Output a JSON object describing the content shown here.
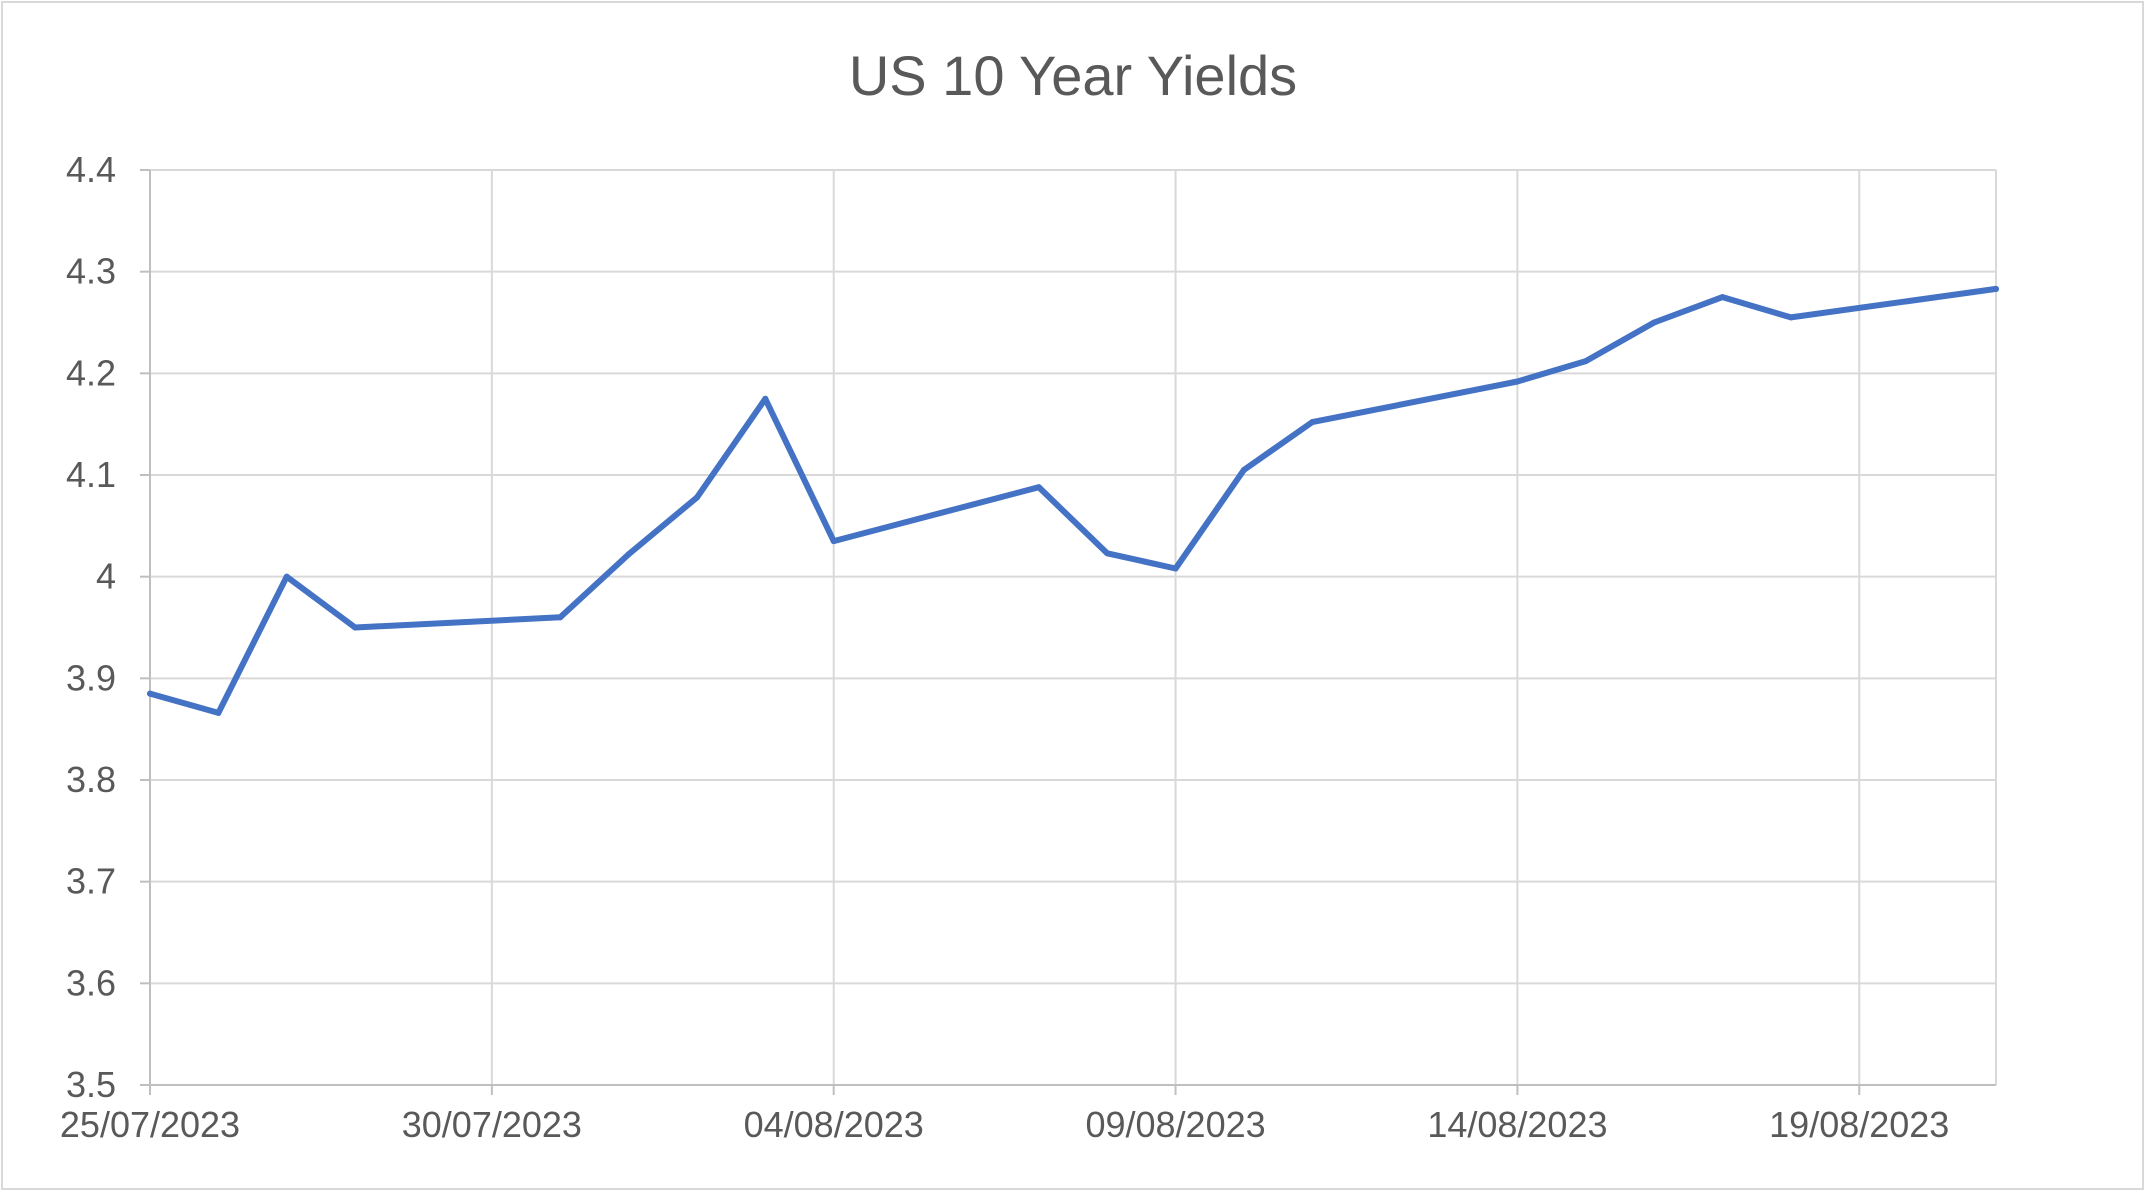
{
  "chart_data": {
    "type": "line",
    "title": "US 10 Year Yields",
    "xlabel": "",
    "ylabel": "",
    "x_axis": "date",
    "xlim": [
      "2023-07-25",
      "2023-08-21"
    ],
    "ylim": [
      3.5,
      4.4
    ],
    "y_ticks": [
      3.5,
      3.6,
      3.7,
      3.8,
      3.9,
      4.0,
      4.1,
      4.2,
      4.3,
      4.4
    ],
    "y_tick_labels": [
      "3.5",
      "3.6",
      "3.7",
      "3.8",
      "3.9",
      "4",
      "4.1",
      "4.2",
      "4.3",
      "4.4"
    ],
    "x_ticks": [
      "2023-07-25",
      "2023-07-30",
      "2023-08-04",
      "2023-08-09",
      "2023-08-14",
      "2023-08-19"
    ],
    "x_tick_labels": [
      "25/07/2023",
      "30/07/2023",
      "04/08/2023",
      "09/08/2023",
      "14/08/2023",
      "19/08/2023"
    ],
    "grid": {
      "horizontal": true,
      "vertical": true
    },
    "legend": "none",
    "series": [
      {
        "color": "#4472c4",
        "points": [
          {
            "x": "2023-07-25",
            "y": 3.885
          },
          {
            "x": "2023-07-26",
            "y": 3.866
          },
          {
            "x": "2023-07-27",
            "y": 4.0
          },
          {
            "x": "2023-07-28",
            "y": 3.95
          },
          {
            "x": "2023-07-31",
            "y": 3.96
          },
          {
            "x": "2023-08-01",
            "y": 4.022
          },
          {
            "x": "2023-08-02",
            "y": 4.078
          },
          {
            "x": "2023-08-03",
            "y": 4.175
          },
          {
            "x": "2023-08-04",
            "y": 4.035
          },
          {
            "x": "2023-08-07",
            "y": 4.088
          },
          {
            "x": "2023-08-08",
            "y": 4.023
          },
          {
            "x": "2023-08-09",
            "y": 4.008
          },
          {
            "x": "2023-08-10",
            "y": 4.105
          },
          {
            "x": "2023-08-11",
            "y": 4.152
          },
          {
            "x": "2023-08-14",
            "y": 4.192
          },
          {
            "x": "2023-08-15",
            "y": 4.212
          },
          {
            "x": "2023-08-16",
            "y": 4.25
          },
          {
            "x": "2023-08-17",
            "y": 4.275
          },
          {
            "x": "2023-08-18",
            "y": 4.255
          },
          {
            "x": "2023-08-21",
            "y": 4.283
          }
        ]
      }
    ],
    "colors": {
      "line": "#4472c4",
      "grid": "#d9d9d9",
      "text": "#595959",
      "frame": "#d9d9d9"
    }
  }
}
